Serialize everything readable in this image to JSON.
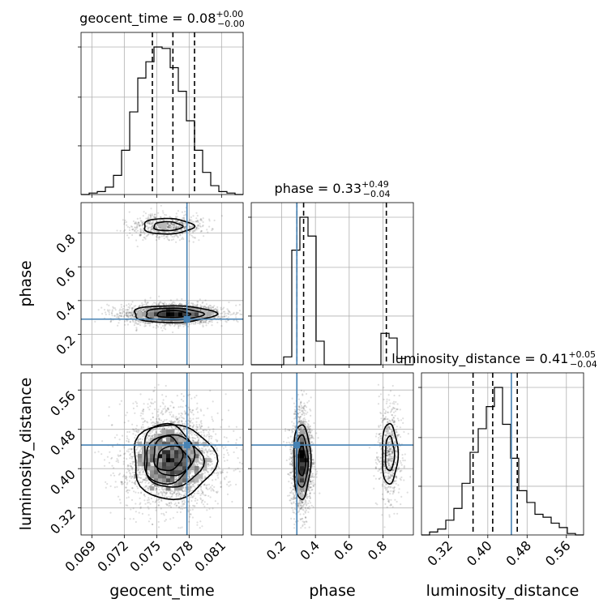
{
  "chart_data": {
    "type": "corner",
    "parameters": [
      "geocent_time",
      "phase",
      "luminosity_distance"
    ],
    "axis_labels": {
      "geocent_time": "geocent_time",
      "phase": "phase",
      "luminosity_distance": "luminosity_distance"
    },
    "titles": {
      "geocent_time": {
        "prefix": "geocent_time = ",
        "median": "0.08",
        "plus": "+0.00",
        "minus": "−0.00"
      },
      "phase": {
        "prefix": "phase = ",
        "median": "0.33",
        "plus": "+0.49",
        "minus": "−0.04"
      },
      "luminosity_distance": {
        "prefix": "luminosity_distance = ",
        "median": "0.41",
        "plus": "+0.05",
        "minus": "−0.04"
      }
    },
    "ranges": {
      "geocent_time": [
        0.068,
        0.083
      ],
      "phase": [
        0.02,
        0.98
      ],
      "luminosity_distance": [
        0.265,
        0.595
      ]
    },
    "ticks": {
      "geocent_time": [
        0.069,
        0.072,
        0.075,
        0.078,
        0.081
      ],
      "phase": [
        0.2,
        0.4,
        0.6,
        0.8
      ],
      "luminosity_distance": [
        0.32,
        0.4,
        0.48,
        0.56
      ]
    },
    "tick_labels": {
      "geocent_time": [
        "0.069",
        "0.072",
        "0.075",
        "0.078",
        "0.081"
      ],
      "phase": [
        "0.2",
        "0.4",
        "0.6",
        "0.8"
      ],
      "luminosity_distance": [
        "0.32",
        "0.40",
        "0.48",
        "0.56"
      ]
    },
    "truths": {
      "geocent_time": 0.0778,
      "phase": 0.29,
      "luminosity_distance": 0.448
    },
    "quantiles": {
      "geocent_time": [
        0.0746,
        0.0765,
        0.0785
      ],
      "phase": [
        0.29,
        0.33,
        0.82
      ],
      "luminosity_distance": [
        0.37,
        0.41,
        0.46
      ]
    },
    "histograms": {
      "geocent_time": {
        "edges_start": 0.068,
        "bin_width": 0.00075,
        "counts": [
          0,
          1,
          2,
          5,
          13,
          30,
          56,
          79,
          90,
          100,
          99,
          86,
          70,
          50,
          30,
          15,
          6,
          2,
          1,
          0
        ]
      },
      "phase": {
        "edges_start": 0.02,
        "bin_width": 0.048,
        "counts": [
          0,
          0,
          0,
          0,
          5,
          73,
          94,
          82,
          15,
          0,
          0,
          0,
          0,
          0,
          0,
          0,
          20,
          17,
          4,
          0
        ]
      },
      "luminosity_distance": {
        "edges_start": 0.265,
        "bin_width": 0.0165,
        "counts": [
          0,
          2,
          4,
          10,
          18,
          35,
          56,
          72,
          87,
          100,
          75,
          52,
          30,
          22,
          14,
          12,
          8,
          5,
          1,
          0
        ]
      }
    },
    "posterior_modes": [
      {
        "weight": 0.8,
        "mean": {
          "geocent_time": 0.0765,
          "phase": 0.32,
          "luminosity_distance": 0.415
        },
        "sd": {
          "geocent_time": 0.0019,
          "phase": 0.025,
          "luminosity_distance": 0.038
        }
      },
      {
        "weight": 0.2,
        "mean": {
          "geocent_time": 0.076,
          "phase": 0.84,
          "luminosity_distance": 0.43
        },
        "sd": {
          "geocent_time": 0.0015,
          "phase": 0.03,
          "luminosity_distance": 0.04
        }
      }
    ],
    "grid": true,
    "legend": "none"
  }
}
